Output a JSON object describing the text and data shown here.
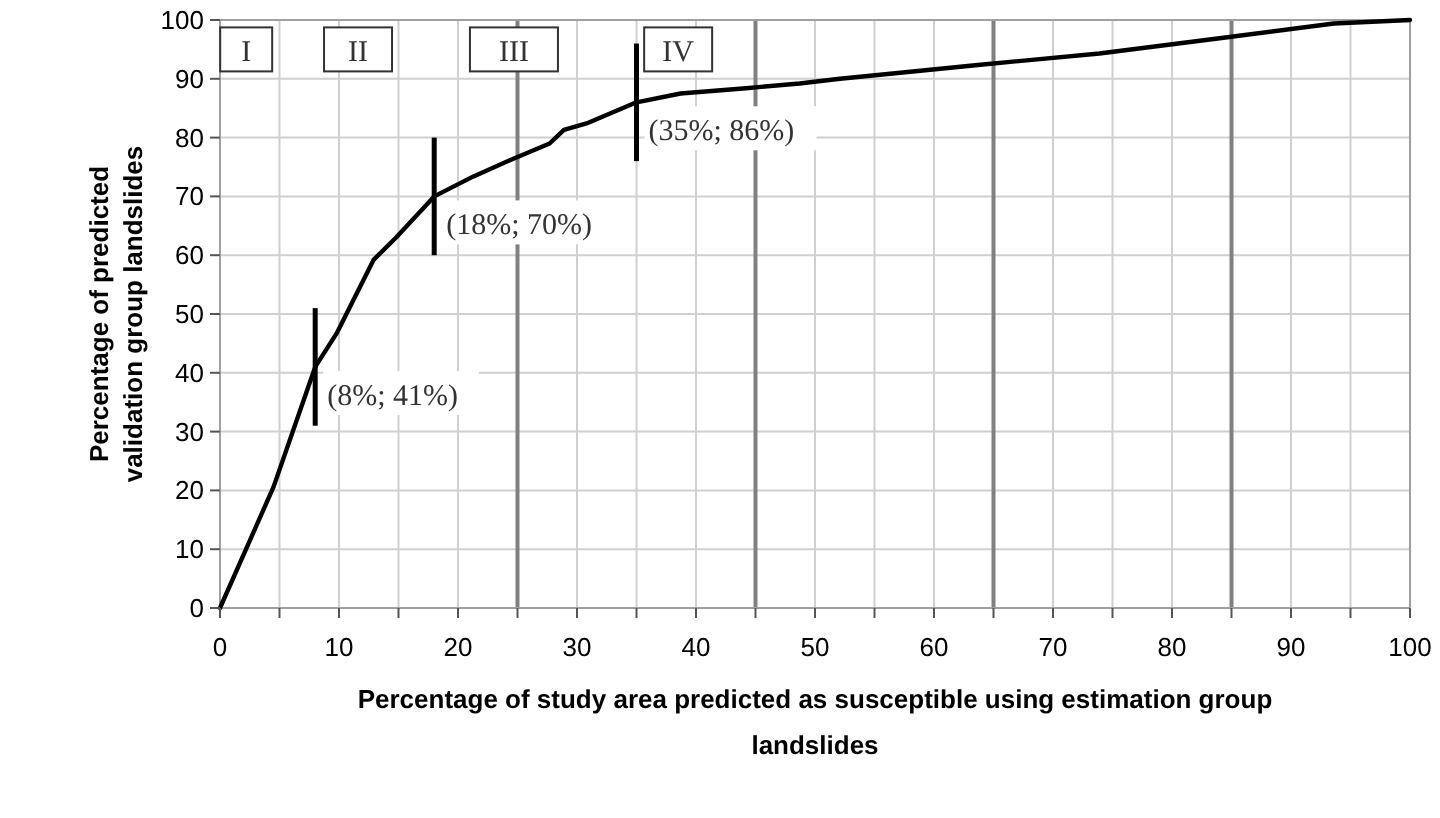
{
  "chart_data": {
    "type": "line",
    "xlabel": "Percentage of study area predicted as susceptible using estimation group landslides",
    "ylabel": "Percentage of predicted validation group landslides",
    "series": [
      {
        "color": "#000000",
        "x": [
          0,
          4.5,
          8,
          9.8,
          12.9,
          14.8,
          18,
          21.3,
          24.4,
          27.7,
          28.9,
          30.8,
          35,
          38.7,
          44.2,
          48.7,
          52.1,
          63.9,
          73.9,
          84,
          93.6,
          100
        ],
        "values": [
          0,
          20.6,
          41,
          46.7,
          59.2,
          63,
          70,
          73.4,
          76.2,
          79,
          81.3,
          82.4,
          86,
          87.5,
          88.4,
          89.2,
          90,
          92.4,
          94.3,
          96.9,
          99.4,
          100
        ]
      }
    ],
    "xlim": [
      0,
      100
    ],
    "ylim": [
      0,
      100
    ],
    "xticks": [
      0,
      10,
      20,
      30,
      40,
      50,
      60,
      70,
      80,
      90,
      100
    ],
    "yticks": [
      0,
      10,
      20,
      30,
      40,
      50,
      60,
      70,
      80,
      90,
      100
    ],
    "grid": true,
    "marker": "none",
    "line_style": "solid",
    "ref_lines": [
      {
        "axis": "x",
        "value": 25,
        "color": "#808080"
      },
      {
        "axis": "x",
        "value": 45,
        "color": "#808080"
      },
      {
        "axis": "x",
        "value": 65,
        "color": "#808080"
      },
      {
        "axis": "x",
        "value": 85,
        "color": "#808080"
      }
    ],
    "annotations": [
      {
        "text": "(8%; 41%)",
        "x": 8,
        "y": 41
      },
      {
        "text": "(18%; 70%)",
        "x": 18,
        "y": 70
      },
      {
        "text": "(35%; 86%)",
        "x": 35,
        "y": 86
      },
      {
        "text": "I",
        "x": 2.2,
        "y": 95
      },
      {
        "text": "II",
        "x": 11.6,
        "y": 95
      },
      {
        "text": "III",
        "x": 24.7,
        "y": 95
      },
      {
        "text": "IV",
        "x": 38.5,
        "y": 95
      }
    ]
  }
}
